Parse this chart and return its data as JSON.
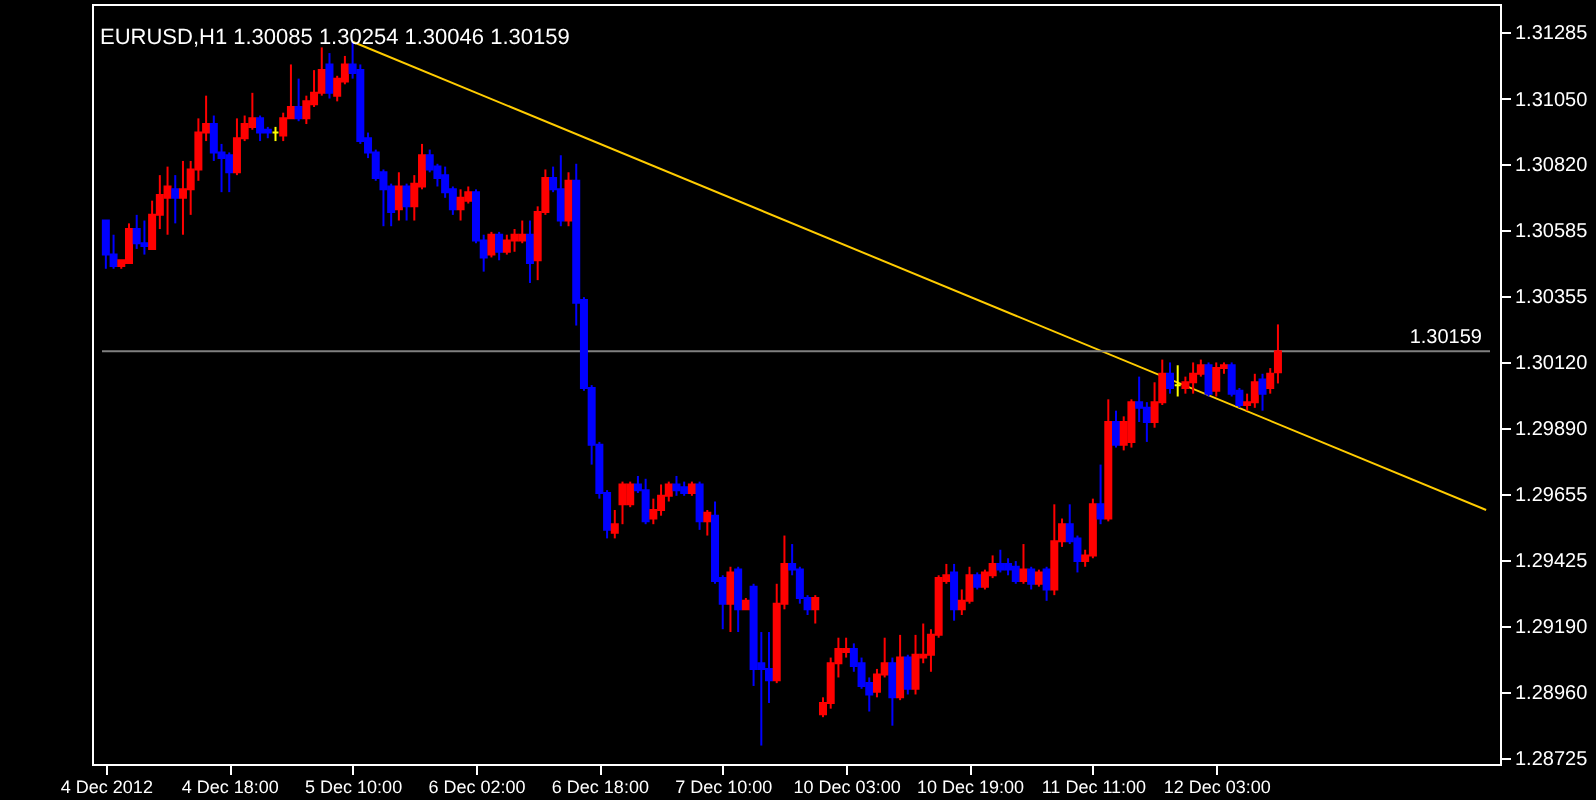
{
  "chart_data": {
    "type": "candlestick",
    "title": "EURUSD,H1 1.30085 1.30254 1.30046 1.30159",
    "categories": [
      "4 Dec 2012",
      null,
      null,
      null,
      null,
      null,
      null,
      null,
      null,
      null,
      null,
      null,
      null,
      null,
      null,
      null,
      "4 Dec 18:00",
      null,
      null,
      null,
      null,
      null,
      null,
      null,
      null,
      null,
      null,
      null,
      null,
      null,
      null,
      null,
      "5 Dec 10:00",
      null,
      null,
      null,
      null,
      null,
      null,
      null,
      null,
      null,
      null,
      null,
      null,
      null,
      null,
      null,
      "6 Dec 02:00",
      null,
      null,
      null,
      null,
      null,
      null,
      null,
      null,
      null,
      null,
      null,
      null,
      null,
      null,
      null,
      "6 Dec 18:00",
      null,
      null,
      null,
      null,
      null,
      null,
      null,
      null,
      null,
      null,
      null,
      null,
      null,
      null,
      null,
      "7 Dec 10:00",
      null,
      null,
      null,
      null,
      null,
      null,
      null,
      null,
      null,
      null,
      null,
      null,
      null,
      null,
      null,
      "10 Dec 03:00",
      null,
      null,
      null,
      null,
      null,
      null,
      null,
      null,
      null,
      null,
      null,
      null,
      null,
      null,
      null,
      "10 Dec 19:00",
      null,
      null,
      null,
      null,
      null,
      null,
      null,
      null,
      null,
      null,
      null,
      null,
      null,
      null,
      null,
      "11 Dec 11:00",
      null,
      null,
      null,
      null,
      null,
      null,
      null,
      null,
      null,
      null,
      null,
      null,
      null,
      null,
      null,
      "12 Dec 03:00",
      null,
      null,
      null,
      null,
      null,
      null,
      null,
      null,
      null,
      null,
      null,
      null,
      null,
      null,
      null,
      null,
      null,
      null,
      null,
      null,
      null,
      null,
      null,
      null,
      null,
      null,
      null,
      null,
      null,
      null,
      null,
      null,
      null,
      null,
      null
    ],
    "ohlc": [
      [
        1.3062,
        1.3062,
        1.3045,
        1.305
      ],
      [
        1.305,
        1.3057,
        1.3045,
        1.3046
      ],
      [
        1.3046,
        1.3048,
        1.3045,
        1.3048
      ],
      [
        1.3047,
        1.3061,
        1.3047,
        1.3059
      ],
      [
        1.3059,
        1.3064,
        1.3052,
        1.3054
      ],
      [
        1.3054,
        1.3062,
        1.305,
        1.3053
      ],
      [
        1.3052,
        1.3069,
        1.3052,
        1.3064
      ],
      [
        1.3064,
        1.3078,
        1.3059,
        1.3071
      ],
      [
        1.307,
        1.3081,
        1.3057,
        1.3074
      ],
      [
        1.3073,
        1.3078,
        1.3061,
        1.307
      ],
      [
        1.307,
        1.3083,
        1.3057,
        1.3073
      ],
      [
        1.3073,
        1.3083,
        1.3064,
        1.308
      ],
      [
        1.308,
        1.3098,
        1.3076,
        1.3093
      ],
      [
        1.3093,
        1.3106,
        1.309,
        1.3096
      ],
      [
        1.3096,
        1.3099,
        1.3083,
        1.3086
      ],
      [
        1.3086,
        1.3089,
        1.3072,
        1.3084
      ],
      [
        1.3085,
        1.3086,
        1.3072,
        1.3079
      ],
      [
        1.3079,
        1.3098,
        1.3078,
        1.3091
      ],
      [
        1.3091,
        1.3099,
        1.309,
        1.3096
      ],
      [
        1.3095,
        1.3107,
        1.3094,
        1.3098
      ],
      [
        1.3098,
        1.3099,
        1.309,
        1.3093
      ],
      [
        1.3094,
        1.3095,
        1.3091,
        1.3093
      ],
      [
        1.3093,
        1.3095,
        1.309,
        1.3093
      ],
      [
        1.3092,
        1.31,
        1.309,
        1.3098
      ],
      [
        1.3098,
        1.3117,
        1.3098,
        1.3102
      ],
      [
        1.3102,
        1.3112,
        1.3097,
        1.3098
      ],
      [
        1.3098,
        1.3106,
        1.3096,
        1.3104
      ],
      [
        1.3103,
        1.3115,
        1.3102,
        1.3107
      ],
      [
        1.3107,
        1.3123,
        1.3106,
        1.3115
      ],
      [
        1.3117,
        1.3121,
        1.3105,
        1.3107
      ],
      [
        1.3106,
        1.3113,
        1.3104,
        1.3112
      ],
      [
        1.3111,
        1.312,
        1.311,
        1.3117
      ],
      [
        1.3117,
        1.3125,
        1.3112,
        1.3114
      ],
      [
        1.3115,
        1.3117,
        1.3089,
        1.309
      ],
      [
        1.3091,
        1.3093,
        1.3084,
        1.3086
      ],
      [
        1.3086,
        1.3087,
        1.3076,
        1.3077
      ],
      [
        1.3079,
        1.308,
        1.306,
        1.3073
      ],
      [
        1.3074,
        1.3075,
        1.306,
        1.3065
      ],
      [
        1.3066,
        1.3079,
        1.3062,
        1.3074
      ],
      [
        1.3074,
        1.3075,
        1.3062,
        1.3067
      ],
      [
        1.3067,
        1.3078,
        1.3062,
        1.3075
      ],
      [
        1.3074,
        1.3089,
        1.3073,
        1.3085
      ],
      [
        1.3085,
        1.3087,
        1.3079,
        1.308
      ],
      [
        1.3081,
        1.3082,
        1.3074,
        1.3077
      ],
      [
        1.3078,
        1.3081,
        1.307,
        1.3072
      ],
      [
        1.3073,
        1.3074,
        1.3064,
        1.3066
      ],
      [
        1.3066,
        1.3073,
        1.3062,
        1.307
      ],
      [
        1.3069,
        1.3074,
        1.3068,
        1.3072
      ],
      [
        1.3072,
        1.3073,
        1.3054,
        1.3055
      ],
      [
        1.3055,
        1.3057,
        1.3044,
        1.3049
      ],
      [
        1.305,
        1.3058,
        1.3049,
        1.3057
      ],
      [
        1.3057,
        1.3058,
        1.3048,
        1.3051
      ],
      [
        1.3051,
        1.3057,
        1.305,
        1.3055
      ],
      [
        1.3055,
        1.3059,
        1.3051,
        1.3057
      ],
      [
        1.3055,
        1.3062,
        1.3054,
        1.3057
      ],
      [
        1.3057,
        1.3062,
        1.304,
        1.3047
      ],
      [
        1.3048,
        1.3067,
        1.3041,
        1.3065
      ],
      [
        1.3065,
        1.308,
        1.3064,
        1.3077
      ],
      [
        1.3077,
        1.3081,
        1.3072,
        1.3073
      ],
      [
        1.3073,
        1.3085,
        1.306,
        1.3062
      ],
      [
        1.3062,
        1.3079,
        1.306,
        1.3076
      ],
      [
        1.3076,
        1.3082,
        1.3025,
        1.3033
      ],
      [
        1.3034,
        1.3035,
        1.3002,
        1.3003
      ],
      [
        1.3003,
        1.3004,
        1.2976,
        1.2983
      ],
      [
        1.2983,
        1.2984,
        1.2964,
        1.2966
      ],
      [
        1.2966,
        1.2967,
        1.295,
        1.2953
      ],
      [
        1.2952,
        1.296,
        1.295,
        1.2955
      ],
      [
        1.2962,
        1.297,
        1.2955,
        1.2969
      ],
      [
        1.2962,
        1.297,
        1.2961,
        1.2969
      ],
      [
        1.2969,
        1.2972,
        1.2966,
        1.2967
      ],
      [
        1.2967,
        1.2971,
        1.2955,
        1.2956
      ],
      [
        1.2957,
        1.2964,
        1.2955,
        1.296
      ],
      [
        1.296,
        1.2969,
        1.2958,
        1.2965
      ],
      [
        1.2965,
        1.297,
        1.2963,
        1.2969
      ],
      [
        1.2969,
        1.2972,
        1.2965,
        1.2967
      ],
      [
        1.2968,
        1.297,
        1.2965,
        1.2966
      ],
      [
        1.2966,
        1.297,
        1.2965,
        1.2969
      ],
      [
        1.2969,
        1.297,
        1.2953,
        1.2956
      ],
      [
        1.2956,
        1.296,
        1.2951,
        1.2959
      ],
      [
        1.2958,
        1.2963,
        1.2934,
        1.2935
      ],
      [
        1.2936,
        1.2937,
        1.2918,
        1.2927
      ],
      [
        1.2927,
        1.294,
        1.2917,
        1.2938
      ],
      [
        1.2939,
        1.294,
        1.2917,
        1.2925
      ],
      [
        1.2925,
        1.2929,
        1.2925,
        1.2928
      ],
      [
        1.2933,
        1.2934,
        1.2898,
        1.2904
      ],
      [
        1.2906,
        1.2917,
        1.2877,
        1.2904
      ],
      [
        1.2904,
        1.2917,
        1.2892,
        1.29
      ],
      [
        1.29,
        1.2934,
        1.2899,
        1.2927
      ],
      [
        1.2927,
        1.2951,
        1.2925,
        1.2941
      ],
      [
        1.2941,
        1.2948,
        1.2937,
        1.2939
      ],
      [
        1.2939,
        1.294,
        1.2927,
        1.2929
      ],
      [
        1.2929,
        1.293,
        1.2923,
        1.2925
      ],
      [
        1.2925,
        1.293,
        1.292,
        1.2929
      ],
      [
        1.2888,
        1.2894,
        1.2887,
        1.2892
      ],
      [
        1.2892,
        1.2908,
        1.289,
        1.2906
      ],
      [
        1.2906,
        1.2915,
        1.2901,
        1.2911
      ],
      [
        1.291,
        1.2915,
        1.2908,
        1.2911
      ],
      [
        1.2911,
        1.2913,
        1.2903,
        1.2905
      ],
      [
        1.2906,
        1.2908,
        1.2897,
        1.2898
      ],
      [
        1.2899,
        1.2901,
        1.2889,
        1.2895
      ],
      [
        1.2896,
        1.2904,
        1.2894,
        1.2902
      ],
      [
        1.2902,
        1.2915,
        1.2901,
        1.2906
      ],
      [
        1.2906,
        1.2908,
        1.2884,
        1.2894
      ],
      [
        1.2894,
        1.2916,
        1.2893,
        1.2908
      ],
      [
        1.2908,
        1.2909,
        1.2895,
        1.2897
      ],
      [
        1.2897,
        1.2916,
        1.2895,
        1.2909
      ],
      [
        1.2908,
        1.292,
        1.2906,
        1.2909
      ],
      [
        1.2909,
        1.2918,
        1.2903,
        1.2916
      ],
      [
        1.2916,
        1.2937,
        1.2915,
        1.2936
      ],
      [
        1.2935,
        1.2941,
        1.2934,
        1.2937
      ],
      [
        1.2938,
        1.2941,
        1.2921,
        1.2925
      ],
      [
        1.2925,
        1.2932,
        1.2923,
        1.2928
      ],
      [
        1.2928,
        1.294,
        1.2927,
        1.2937
      ],
      [
        1.2937,
        1.2938,
        1.2932,
        1.2933
      ],
      [
        1.2933,
        1.2939,
        1.2932,
        1.2938
      ],
      [
        1.2937,
        1.2944,
        1.2936,
        1.2941
      ],
      [
        1.2941,
        1.2946,
        1.2938,
        1.2939
      ],
      [
        1.2941,
        1.2943,
        1.2937,
        1.2939
      ],
      [
        1.294,
        1.2942,
        1.2934,
        1.2935
      ],
      [
        1.2935,
        1.2948,
        1.2934,
        1.2939
      ],
      [
        1.2939,
        1.294,
        1.2932,
        1.2934
      ],
      [
        1.2934,
        1.2939,
        1.2933,
        1.2938
      ],
      [
        1.2939,
        1.294,
        1.2928,
        1.2932
      ],
      [
        1.2932,
        1.2962,
        1.293,
        1.2949
      ],
      [
        1.2949,
        1.2957,
        1.2947,
        1.2955
      ],
      [
        1.2955,
        1.2962,
        1.2948,
        1.2949
      ],
      [
        1.295,
        1.2951,
        1.2938,
        1.2942
      ],
      [
        1.2942,
        1.2946,
        1.294,
        1.2944
      ],
      [
        1.2944,
        1.2964,
        1.2943,
        1.2962
      ],
      [
        1.2962,
        1.2976,
        1.2955,
        1.2957
      ],
      [
        1.2957,
        1.2999,
        1.2956,
        1.2991
      ],
      [
        1.2991,
        1.2995,
        1.2982,
        1.2983
      ],
      [
        1.2983,
        1.2993,
        1.2981,
        1.2991
      ],
      [
        1.2984,
        1.2999,
        1.2982,
        1.2998
      ],
      [
        1.2998,
        1.3007,
        1.2991,
        1.2996
      ],
      [
        1.2996,
        1.2998,
        1.2984,
        1.2991
      ],
      [
        1.2991,
        1.3005,
        1.2989,
        1.2998
      ],
      [
        1.2998,
        1.3013,
        1.2997,
        1.3008
      ],
      [
        1.3008,
        1.3012,
        1.3001,
        1.3003
      ],
      [
        1.3004,
        1.3011,
        1.3,
        1.3004
      ],
      [
        1.3003,
        1.3007,
        1.3001,
        1.3005
      ],
      [
        1.3005,
        1.3012,
        1.3001,
        1.3008
      ],
      [
        1.3008,
        1.3013,
        1.3007,
        1.3011
      ],
      [
        1.3011,
        1.3012,
        1.3,
        1.3001
      ],
      [
        1.3002,
        1.3012,
        1.3,
        1.301
      ],
      [
        1.301,
        1.3012,
        1.3008,
        1.3011
      ],
      [
        1.3011,
        1.3012,
        1.3,
        1.3001
      ],
      [
        1.3002,
        1.3003,
        1.2996,
        1.2997
      ],
      [
        1.2997,
        1.3001,
        1.2995,
        1.2998
      ],
      [
        1.2998,
        1.3008,
        1.2996,
        1.3005
      ],
      [
        1.3006,
        1.3008,
        1.2995,
        1.3001
      ],
      [
        1.3003,
        1.301,
        1.3001,
        1.3008
      ],
      [
        1.30085,
        1.30254,
        1.30046,
        1.30159
      ],
      null,
      null,
      null,
      null,
      null,
      null,
      null,
      null,
      null,
      null,
      null,
      null,
      null,
      null,
      null,
      null,
      null,
      null,
      null,
      null,
      null,
      null,
      null,
      null,
      null,
      null,
      null
    ],
    "colors": [
      "#0000ff",
      "#0000ff",
      "#ff0000",
      "#ff0000",
      "#0000ff",
      "#0000ff",
      "#ff0000",
      "#ff0000",
      "#ff0000",
      "#0000ff",
      "#ff0000",
      "#ff0000",
      "#ff0000",
      "#ff0000",
      "#0000ff",
      "#0000ff",
      "#0000ff",
      "#ff0000",
      "#ff0000",
      "#ff0000",
      "#0000ff",
      "#0000ff",
      "#ffff00",
      "#ff0000",
      "#ff0000",
      "#0000ff",
      "#ff0000",
      "#ff0000",
      "#ff0000",
      "#0000ff",
      "#ff0000",
      "#ff0000",
      "#0000ff",
      "#0000ff",
      "#0000ff",
      "#0000ff",
      "#0000ff",
      "#0000ff",
      "#ff0000",
      "#0000ff",
      "#ff0000",
      "#ff0000",
      "#0000ff",
      "#0000ff",
      "#0000ff",
      "#0000ff",
      "#ff0000",
      "#ff0000",
      "#0000ff",
      "#0000ff",
      "#ff0000",
      "#0000ff",
      "#ff0000",
      "#ff0000",
      "#ff0000",
      "#0000ff",
      "#ff0000",
      "#ff0000",
      "#0000ff",
      "#0000ff",
      "#ff0000",
      "#0000ff",
      "#0000ff",
      "#0000ff",
      "#0000ff",
      "#0000ff",
      "#ff0000",
      "#ff0000",
      "#ff0000",
      "#0000ff",
      "#0000ff",
      "#ff0000",
      "#ff0000",
      "#ff0000",
      "#0000ff",
      "#0000ff",
      "#ff0000",
      "#0000ff",
      "#ff0000",
      "#0000ff",
      "#0000ff",
      "#ff0000",
      "#0000ff",
      "#ff0000",
      "#0000ff",
      "#0000ff",
      "#0000ff",
      "#ff0000",
      "#ff0000",
      "#0000ff",
      "#0000ff",
      "#0000ff",
      "#ff0000",
      "#ff0000",
      "#ff0000",
      "#ff0000",
      "#ff0000",
      "#0000ff",
      "#0000ff",
      "#0000ff",
      "#ff0000",
      "#ff0000",
      "#0000ff",
      "#ff0000",
      "#0000ff",
      "#ff0000",
      "#ff0000",
      "#ff0000",
      "#ff0000",
      "#ff0000",
      "#0000ff",
      "#ff0000",
      "#ff0000",
      "#0000ff",
      "#ff0000",
      "#ff0000",
      "#0000ff",
      "#0000ff",
      "#0000ff",
      "#ff0000",
      "#0000ff",
      "#ff0000",
      "#0000ff",
      "#ff0000",
      "#ff0000",
      "#0000ff",
      "#0000ff",
      "#ff0000",
      "#ff0000",
      "#0000ff",
      "#ff0000",
      "#0000ff",
      "#ff0000",
      "#ff0000",
      "#0000ff",
      "#0000ff",
      "#ff0000",
      "#ff0000",
      "#0000ff",
      "#ffff00",
      "#ff0000",
      "#ff0000",
      "#ff0000",
      "#0000ff",
      "#ff0000",
      "#ff0000",
      "#0000ff",
      "#0000ff",
      "#ff0000",
      "#ff0000",
      "#0000ff",
      "#ff0000",
      "#ff0000",
      null,
      null,
      null,
      null,
      null,
      null,
      null,
      null,
      null,
      null,
      null,
      null,
      null,
      null,
      null,
      null,
      null,
      null,
      null,
      null,
      null,
      null,
      null,
      null,
      null,
      null,
      null
    ],
    "series": [
      {
        "type": "line",
        "color": "#ffcc00",
        "values": [
          null,
          null,
          null,
          null,
          null,
          null,
          null,
          null,
          null,
          null,
          null,
          null,
          null,
          null,
          null,
          null,
          null,
          null,
          null,
          null,
          null,
          null,
          null,
          null,
          null,
          null,
          null,
          null,
          null,
          null,
          null,
          null,
          1.3125,
          null,
          null,
          null,
          null,
          null,
          null,
          null,
          null,
          null,
          null,
          null,
          null,
          null,
          null,
          null,
          null,
          null,
          null,
          null,
          null,
          null,
          null,
          null,
          null,
          null,
          null,
          null,
          null,
          null,
          null,
          null,
          null,
          null,
          null,
          null,
          null,
          null,
          null,
          null,
          null,
          null,
          null,
          null,
          null,
          null,
          null,
          null,
          null,
          null,
          null,
          null,
          null,
          null,
          null,
          null,
          null,
          null,
          null,
          null,
          null,
          null,
          null,
          null,
          null,
          null,
          null,
          null,
          null,
          null,
          null,
          null,
          null,
          null,
          null,
          null,
          null,
          null,
          null,
          null,
          null,
          null,
          null,
          null,
          null,
          null,
          null,
          null,
          null,
          null,
          null,
          null,
          null,
          null,
          null,
          null,
          null,
          null,
          null,
          null,
          null,
          null,
          null,
          null,
          null,
          null,
          null,
          null,
          null,
          null,
          null,
          null,
          null,
          null,
          null,
          null,
          null,
          null,
          null,
          null,
          null,
          null,
          null,
          null,
          null,
          null,
          null,
          null,
          null,
          null,
          null,
          null,
          null,
          null,
          null,
          null,
          null,
          null,
          null,
          null,
          null,
          null,
          null,
          null,
          null,
          null,
          null,
          1.296
        ]
      }
    ],
    "ref_lines": [
      {
        "axis": "y",
        "value": 1.30159,
        "label": "1.30159",
        "color": "#808080"
      }
    ],
    "ylim": [
      1.28705,
      1.31383
    ],
    "yticks": [
      1.31285,
      {
        "value": 1.3105,
        "label": "1.31050"
      },
      {
        "value": 1.3082,
        "label": "1.30820"
      },
      1.30585,
      1.30355,
      {
        "value": 1.3012,
        "label": "1.30120"
      },
      {
        "value": 1.2989,
        "label": "1.29890"
      },
      1.29655,
      1.29425,
      {
        "value": 1.2919,
        "label": "1.29190"
      },
      {
        "value": 1.2896,
        "label": "1.28960"
      },
      1.28725
    ]
  }
}
